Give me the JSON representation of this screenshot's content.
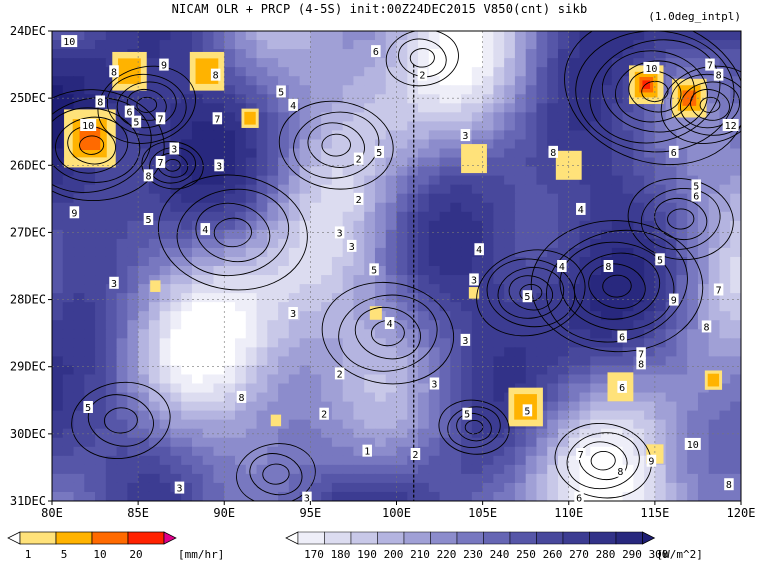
{
  "title": "NICAM  OLR + PRCP (4-5S) init:00Z24DEC2015 V850(cnt) sikb",
  "note": "(1.0deg_intpl)",
  "chart_data": {
    "type": "heatmap",
    "xlabel": "",
    "ylabel": "",
    "x_ticks": [
      "80E",
      "85E",
      "90E",
      "95E",
      "100E",
      "105E",
      "110E",
      "115E",
      "120E"
    ],
    "x_range": [
      80,
      120
    ],
    "y_ticks": [
      "24DEC",
      "25DEC",
      "26DEC",
      "27DEC",
      "28DEC",
      "29DEC",
      "30DEC",
      "31DEC"
    ],
    "y_range_days": [
      24,
      31
    ],
    "grid": true,
    "dashed_reference_lon": 101,
    "series": [
      {
        "name": "PRCP",
        "units": "[mm/hr]",
        "levels": [
          "1",
          "5",
          "10",
          "20"
        ],
        "colors": [
          "#ffffff",
          "#ffe27a",
          "#ffb300",
          "#ff6a00",
          "#ff2200",
          "#e0008a"
        ]
      },
      {
        "name": "OLR",
        "units": "[W/m^2]",
        "levels": [
          "170",
          "180",
          "190",
          "200",
          "210",
          "220",
          "230",
          "240",
          "250",
          "260",
          "270",
          "280",
          "290",
          "300"
        ],
        "colors": [
          "#ffffff",
          "#eeeef8",
          "#dcdcf0",
          "#c8c8e8",
          "#b4b4e0",
          "#a0a0d6",
          "#8c8ccc",
          "#7878c0",
          "#6666b4",
          "#5656a8",
          "#48489c",
          "#3c3c92",
          "#323288",
          "#28287e",
          "#1e1e74"
        ]
      }
    ],
    "contour_labels": [
      {
        "text": "10",
        "lon": 81,
        "day": 24.15
      },
      {
        "text": "8",
        "lon": 83.6,
        "day": 24.6
      },
      {
        "text": "9",
        "lon": 86.5,
        "day": 24.5
      },
      {
        "text": "8",
        "lon": 89.5,
        "day": 24.65
      },
      {
        "text": "5",
        "lon": 93.3,
        "day": 24.9
      },
      {
        "text": "6",
        "lon": 98.8,
        "day": 24.3
      },
      {
        "text": "2",
        "lon": 101.5,
        "day": 24.65
      },
      {
        "text": "8",
        "lon": 82.8,
        "day": 25.05
      },
      {
        "text": "6",
        "lon": 84.5,
        "day": 25.2
      },
      {
        "text": "7",
        "lon": 86.3,
        "day": 25.3
      },
      {
        "text": "7",
        "lon": 89.6,
        "day": 25.3
      },
      {
        "text": "4",
        "lon": 94,
        "day": 25.1
      },
      {
        "text": "10",
        "lon": 82.1,
        "day": 25.4
      },
      {
        "text": "5",
        "lon": 84.9,
        "day": 25.35
      },
      {
        "text": "3",
        "lon": 87.1,
        "day": 25.75
      },
      {
        "text": "7",
        "lon": 86.3,
        "day": 25.95
      },
      {
        "text": "8",
        "lon": 85.6,
        "day": 26.15
      },
      {
        "text": "3",
        "lon": 89.7,
        "day": 26
      },
      {
        "text": "2",
        "lon": 97.8,
        "day": 25.9
      },
      {
        "text": "5",
        "lon": 99,
        "day": 25.8
      },
      {
        "text": "3",
        "lon": 104,
        "day": 25.55
      },
      {
        "text": "9",
        "lon": 81.3,
        "day": 26.7
      },
      {
        "text": "5",
        "lon": 85.6,
        "day": 26.8
      },
      {
        "text": "4",
        "lon": 88.9,
        "day": 26.95
      },
      {
        "text": "2",
        "lon": 97.8,
        "day": 26.5
      },
      {
        "text": "3",
        "lon": 96.7,
        "day": 27
      },
      {
        "text": "3",
        "lon": 97.4,
        "day": 27.2
      },
      {
        "text": "4",
        "lon": 104.8,
        "day": 27.25
      },
      {
        "text": "3",
        "lon": 104.5,
        "day": 27.7
      },
      {
        "text": "10",
        "lon": 114.8,
        "day": 24.55
      },
      {
        "text": "7",
        "lon": 118.2,
        "day": 24.5
      },
      {
        "text": "8",
        "lon": 118.7,
        "day": 24.65
      },
      {
        "text": "12",
        "lon": 119.4,
        "day": 25.4
      },
      {
        "text": "8",
        "lon": 109.1,
        "day": 25.8
      },
      {
        "text": "6",
        "lon": 116.1,
        "day": 25.8
      },
      {
        "text": "5",
        "lon": 117.4,
        "day": 26.3
      },
      {
        "text": "6",
        "lon": 117.4,
        "day": 26.45
      },
      {
        "text": "4",
        "lon": 110.7,
        "day": 26.65
      },
      {
        "text": "5",
        "lon": 115.3,
        "day": 27.4
      },
      {
        "text": "8",
        "lon": 112.3,
        "day": 27.5
      },
      {
        "text": "3",
        "lon": 83.6,
        "day": 27.75
      },
      {
        "text": "5",
        "lon": 98.7,
        "day": 27.55
      },
      {
        "text": "4",
        "lon": 109.6,
        "day": 27.5
      },
      {
        "text": "7",
        "lon": 118.7,
        "day": 27.85
      },
      {
        "text": "5",
        "lon": 107.6,
        "day": 27.95
      },
      {
        "text": "9",
        "lon": 116.1,
        "day": 28
      },
      {
        "text": "3",
        "lon": 94,
        "day": 28.2
      },
      {
        "text": "4",
        "lon": 99.6,
        "day": 28.35
      },
      {
        "text": "6",
        "lon": 113.1,
        "day": 28.55
      },
      {
        "text": "8",
        "lon": 118,
        "day": 28.4
      },
      {
        "text": "3",
        "lon": 104,
        "day": 28.6
      },
      {
        "text": "7",
        "lon": 114.2,
        "day": 28.8
      },
      {
        "text": "8",
        "lon": 114.2,
        "day": 28.95
      },
      {
        "text": "2",
        "lon": 96.7,
        "day": 29.1
      },
      {
        "text": "3",
        "lon": 102.2,
        "day": 29.25
      },
      {
        "text": "6",
        "lon": 113.1,
        "day": 29.3
      },
      {
        "text": "8",
        "lon": 91,
        "day": 29.45
      },
      {
        "text": "5",
        "lon": 82.1,
        "day": 29.6
      },
      {
        "text": "5",
        "lon": 107.6,
        "day": 29.65
      },
      {
        "text": "5",
        "lon": 104.1,
        "day": 29.7
      },
      {
        "text": "2",
        "lon": 95.8,
        "day": 29.7
      },
      {
        "text": "1",
        "lon": 98.3,
        "day": 30.25
      },
      {
        "text": "2",
        "lon": 101.1,
        "day": 30.3
      },
      {
        "text": "7",
        "lon": 110.7,
        "day": 30.3
      },
      {
        "text": "10",
        "lon": 117.2,
        "day": 30.15
      },
      {
        "text": "9",
        "lon": 114.8,
        "day": 30.4
      },
      {
        "text": "8",
        "lon": 113,
        "day": 30.55
      },
      {
        "text": "3",
        "lon": 87.4,
        "day": 30.8
      },
      {
        "text": "3",
        "lon": 94.8,
        "day": 30.95
      },
      {
        "text": "6",
        "lon": 110.6,
        "day": 30.95
      },
      {
        "text": "8",
        "lon": 119.3,
        "day": 30.75
      }
    ]
  }
}
